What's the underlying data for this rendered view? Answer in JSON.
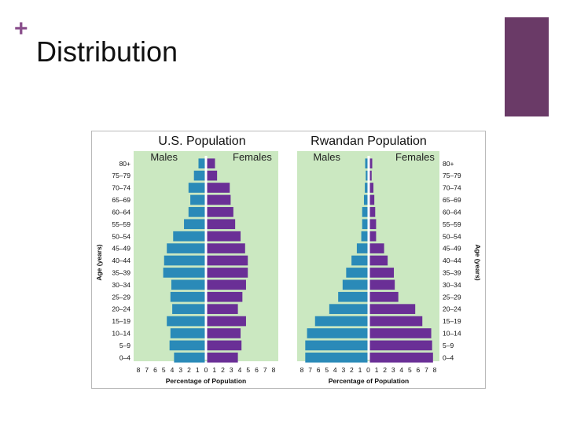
{
  "slide": {
    "plus_glyph": "+",
    "title": "Distribution"
  },
  "colors": {
    "accent": "#6a3a67",
    "plot_bg": "#cbe8c1",
    "male_bar": "#2a8ab8",
    "female_bar": "#6a2f96",
    "center_band": "#ffffff"
  },
  "chart_data": [
    {
      "type": "bar",
      "orientation": "horizontal-population-pyramid",
      "title": "U.S. Population",
      "series": [
        {
          "name": "Males",
          "values": [
            3.4,
            3.9,
            3.8,
            4.2,
            3.6,
            3.8,
            3.7,
            4.6,
            4.5,
            4.2,
            3.5,
            2.3,
            1.8,
            1.6,
            1.8,
            1.2
          ]
        },
        {
          "name": "Females",
          "values": [
            3.4,
            3.8,
            3.7,
            4.3,
            3.4,
            3.9,
            4.3,
            4.5,
            4.5,
            4.2,
            3.7,
            3.1,
            2.9,
            2.6,
            2.5,
            1.1
          ]
        }
      ],
      "categories": [
        "0–4",
        "5–9",
        "10–14",
        "15–19",
        "20–24",
        "25–29",
        "30–34",
        "35–39",
        "40–44",
        "45–49",
        "50–54",
        "55–59",
        "60–64",
        "65–69",
        "70–74",
        "75–79"
      ],
      "top_category": "80+",
      "xlabel": "Percentage of Population",
      "ylabel": "Age (years)",
      "xticks": [
        "8",
        "7",
        "6",
        "5",
        "4",
        "3",
        "2",
        "1",
        "0",
        "1",
        "2",
        "3",
        "4",
        "5",
        "6",
        "7",
        "8"
      ],
      "xlim": [
        -8,
        8
      ]
    },
    {
      "type": "bar",
      "orientation": "horizontal-population-pyramid",
      "title": "Rwandan Population",
      "series": [
        {
          "name": "Males",
          "values": [
            7.0,
            7.0,
            6.8,
            5.9,
            4.3,
            3.3,
            2.8,
            2.4,
            1.8,
            1.2,
            0.7,
            0.6,
            0.6,
            0.4,
            0.3,
            0.2
          ]
        },
        {
          "name": "Females",
          "values": [
            7.1,
            7.0,
            6.9,
            5.9,
            5.1,
            3.2,
            2.8,
            2.7,
            2.0,
            1.6,
            0.7,
            0.7,
            0.6,
            0.5,
            0.4,
            0.2
          ]
        }
      ],
      "categories": [
        "0–4",
        "5–9",
        "10–14",
        "15–19",
        "20–24",
        "25–29",
        "30–34",
        "35–39",
        "40–44",
        "45–49",
        "50–54",
        "55–59",
        "60–64",
        "65–69",
        "70–74",
        "75–79"
      ],
      "top_category": "80+",
      "xlabel": "Percentage of Population",
      "ylabel": "Age (years)",
      "xticks": [
        "8",
        "7",
        "6",
        "5",
        "4",
        "3",
        "2",
        "1",
        "0",
        "1",
        "2",
        "3",
        "4",
        "5",
        "6",
        "7",
        "8"
      ],
      "xlim": [
        -8,
        8
      ]
    }
  ]
}
